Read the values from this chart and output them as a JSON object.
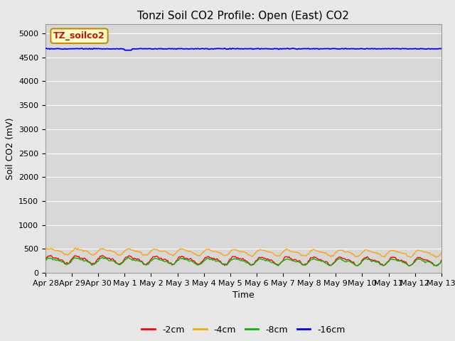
{
  "title": "Tonzi Soil CO2 Profile: Open (East) CO2",
  "ylabel": "Soil CO2 (mV)",
  "xlabel": "Time",
  "ylim": [
    0,
    5200
  ],
  "yticks": [
    0,
    500,
    1000,
    1500,
    2000,
    2500,
    3000,
    3500,
    4000,
    4500,
    5000
  ],
  "fig_bg_color": "#e8e8e8",
  "plot_bg_color": "#d8d8d8",
  "grid_color": "#ffffff",
  "legend_label": "TZ_soilco2",
  "series_labels": [
    "-2cm",
    "-4cm",
    "-8cm",
    "-16cm"
  ],
  "series_colors": [
    "#ff0000",
    "#ffa500",
    "#00bb00",
    "#0000ff"
  ],
  "n_points": 370,
  "xticklabels": [
    "Apr 28",
    "Apr 29",
    "Apr 30",
    "May 1",
    "May 2",
    "May 3",
    "May 4",
    "May 5",
    "May 6",
    "May 7",
    "May 8",
    "May 9",
    "May 10",
    "May 11",
    "May 12",
    "May 13"
  ],
  "seed": 42,
  "neg2cm_base": 280,
  "neg2cm_amp": 70,
  "neg4cm_base": 450,
  "neg4cm_amp": 55,
  "neg8cm_base": 250,
  "neg8cm_amp": 55,
  "neg16cm_base": 4680,
  "neg16cm_amp": 4,
  "title_fontsize": 11,
  "axis_label_fontsize": 9,
  "tick_fontsize": 8,
  "legend_fontsize": 9
}
